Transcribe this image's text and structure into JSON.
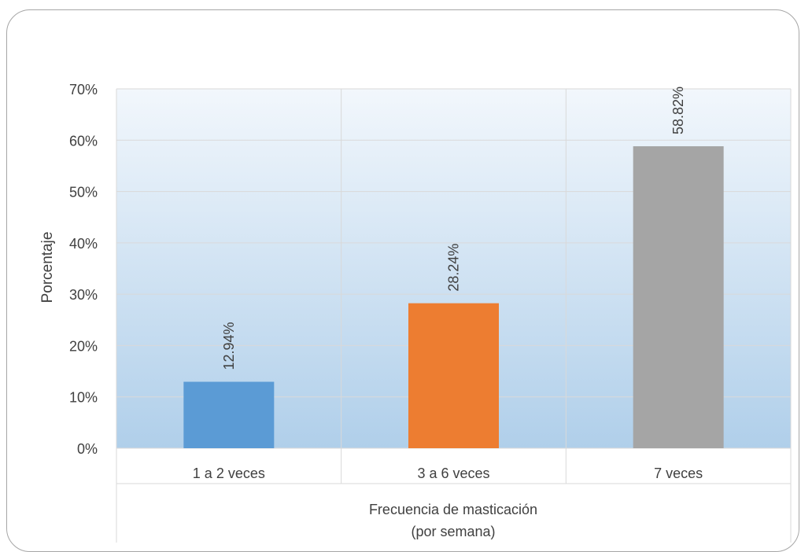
{
  "chart_data": {
    "type": "bar",
    "categories": [
      "1 a 2 veces",
      "3 a 6 veces",
      "7 veces"
    ],
    "values": [
      12.94,
      28.24,
      58.82
    ],
    "data_labels": [
      "12.94%",
      "28.24%",
      "58.82%"
    ],
    "colors": [
      "#5b9bd5",
      "#ed7d31",
      "#a5a5a5"
    ],
    "ylim": [
      0,
      70
    ],
    "ytick_values": [
      0,
      10,
      20,
      30,
      40,
      50,
      60,
      70
    ],
    "ytick_labels": [
      "0%",
      "10%",
      "20%",
      "30%",
      "40%",
      "50%",
      "60%",
      "70%"
    ],
    "ylabel": "Porcentaje",
    "xlabel_lines": [
      "Frecuencia de masticación",
      "(por semana)"
    ],
    "grid": true,
    "background_gradient": [
      "#f2f7fc",
      "#b0cfea"
    ]
  }
}
